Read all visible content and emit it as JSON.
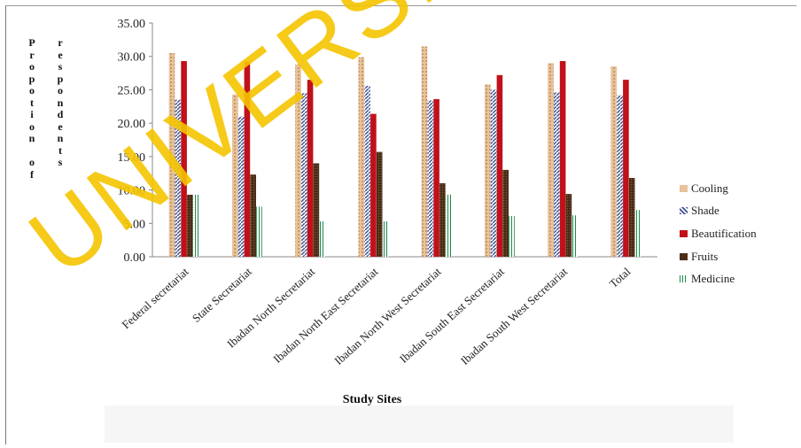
{
  "chart_data": {
    "type": "bar",
    "title": "",
    "ylabel_lines": [
      "Propotion of",
      "respondents"
    ],
    "xlabel": "Study Sites",
    "ylim": [
      0,
      35
    ],
    "yticks": [
      "0.00",
      "5.00",
      "10.00",
      "15.00",
      "20.00",
      "25.00",
      "30.00",
      "35.00"
    ],
    "legend_position": "right",
    "categories": [
      "Federal secretariat",
      "State Secretariat",
      "Ibadan North Secretariat",
      "Ibadan North East Secretariat",
      "Ibadan North West Secretariat",
      "Ibadan South East Secretariat",
      "Ibadan South West Secretariat",
      "Total"
    ],
    "series": [
      {
        "name": "Cooling",
        "color": "#e8c29a",
        "values": [
          30.5,
          24.3,
          28.8,
          29.9,
          31.5,
          25.8,
          29.0,
          28.5
        ]
      },
      {
        "name": "Shade",
        "color": "#4a5f9e",
        "values": [
          23.5,
          21.0,
          24.5,
          25.6,
          23.4,
          25.0,
          24.6,
          24.2
        ]
      },
      {
        "name": "Beautification",
        "color": "#c0111a",
        "values": [
          29.3,
          29.2,
          26.5,
          21.4,
          23.6,
          27.2,
          29.3,
          26.5
        ]
      },
      {
        "name": "Fruits",
        "color": "#5a3a22",
        "values": [
          9.3,
          12.3,
          14.0,
          15.7,
          11.0,
          13.0,
          9.4,
          11.8
        ]
      },
      {
        "name": "Medicine",
        "color": "#1a8c4a",
        "values": [
          9.3,
          7.5,
          5.3,
          5.3,
          9.3,
          6.1,
          6.2,
          7.0
        ]
      }
    ]
  },
  "watermark": "UNIVERSITY OF IBADAN"
}
